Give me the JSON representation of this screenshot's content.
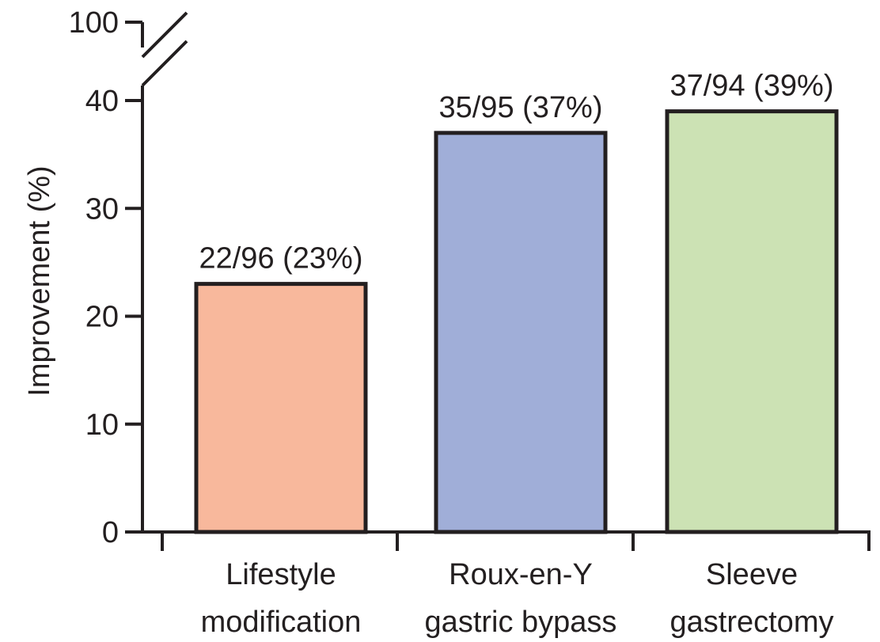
{
  "chart_data": {
    "type": "bar",
    "categories": [
      [
        "Lifestyle",
        "modification"
      ],
      [
        "Roux-en-Y",
        "gastric bypass"
      ],
      [
        "Sleeve",
        "gastrectomy"
      ]
    ],
    "values": [
      23,
      37,
      39
    ],
    "data_labels": [
      "22/96 (23%)",
      "35/95 (37%)",
      "37/94 (39%)"
    ],
    "colors": [
      "#f8b89c",
      "#a0aed8",
      "#cce2b4"
    ],
    "ylabel": "Improvement (%)",
    "yticks": [
      0,
      10,
      20,
      30,
      40
    ],
    "ybreak_tick": 100,
    "ylim": [
      0,
      40
    ],
    "axis_break": true,
    "grid": false
  }
}
